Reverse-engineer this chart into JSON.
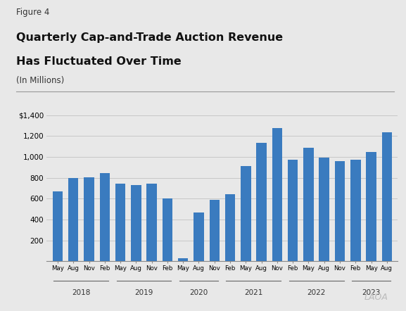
{
  "figure_label": "Figure 4",
  "title_line1": "Quarterly Cap-and-Trade Auction Revenue",
  "title_line2": "Has Fluctuated Over Time",
  "subtitle": "(In Millions)",
  "bar_color": "#3A7BBF",
  "background_color": "#E8E8E8",
  "plot_bg_color": "#E8E8E8",
  "values": [
    670,
    795,
    805,
    845,
    740,
    730,
    740,
    605,
    30,
    465,
    585,
    640,
    910,
    1135,
    1275,
    970,
    1090,
    995,
    960,
    975,
    1045,
    1235
  ],
  "tick_labels": [
    "May",
    "Aug",
    "Nov",
    "Feb",
    "May",
    "Aug",
    "Nov",
    "Feb",
    "May",
    "Aug",
    "Nov",
    "Feb",
    "May",
    "Aug",
    "Nov",
    "Feb",
    "May",
    "Aug",
    "Nov",
    "Feb",
    "May",
    "Aug"
  ],
  "year_labels": [
    "2018",
    "2019",
    "2020",
    "2021",
    "2022",
    "2023"
  ],
  "year_bracket_ranges": [
    [
      0,
      3
    ],
    [
      4,
      7
    ],
    [
      8,
      10
    ],
    [
      11,
      14
    ],
    [
      15,
      18
    ],
    [
      19,
      21
    ]
  ],
  "ylim": [
    0,
    1400
  ],
  "yticks": [
    0,
    200,
    400,
    600,
    800,
    1000,
    1200,
    1400
  ],
  "ytick_labels": [
    "",
    "200",
    "400",
    "600",
    "800",
    "1,000",
    "1,200",
    "$1,400"
  ],
  "grid_color": "#C8C8C8",
  "bar_width": 0.65,
  "lao_text": "LAO",
  "lao_symbol": "A"
}
